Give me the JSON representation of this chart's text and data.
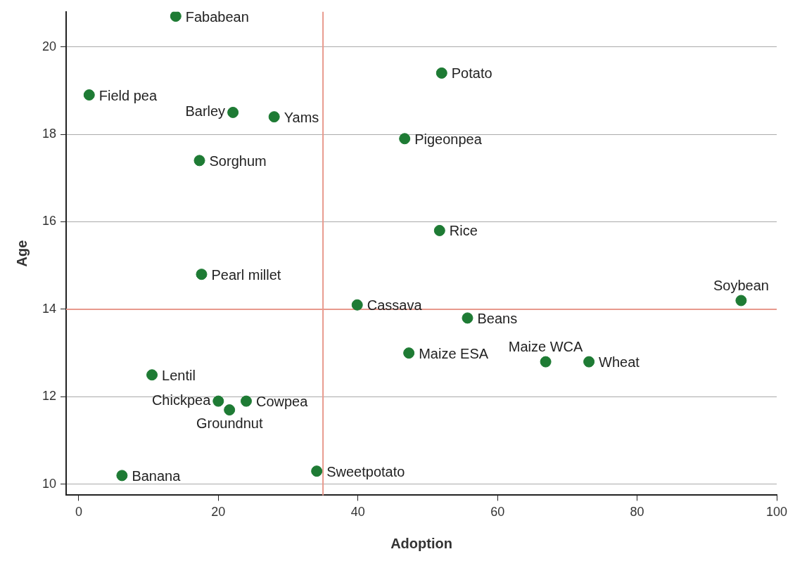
{
  "chart_data": {
    "type": "scatter",
    "xlabel": "Adoption",
    "ylabel": "Age",
    "xlim": [
      -1.8,
      100
    ],
    "xticks": [
      0,
      20,
      40,
      60,
      80,
      100
    ],
    "ylim": [
      9.75,
      20.8
    ],
    "yticks": [
      10,
      12,
      14,
      16,
      18,
      20
    ],
    "grid": "y",
    "legend": false,
    "marker": "circle",
    "x": [
      13.9,
      1.5,
      22.1,
      28.0,
      17.3,
      52.0,
      46.7,
      51.7,
      17.6,
      39.9,
      94.9,
      55.7,
      47.3,
      66.9,
      73.1,
      10.5,
      20.0,
      24.0,
      21.6,
      6.2,
      34.1
    ],
    "series": [
      {
        "color": "#1e7b34",
        "values": [
          20.7,
          18.9,
          18.5,
          18.4,
          17.4,
          19.4,
          17.9,
          15.8,
          14.8,
          14.1,
          14.2,
          13.8,
          13.0,
          12.8,
          12.8,
          12.5,
          11.9,
          11.9,
          11.7,
          10.2,
          10.3
        ]
      }
    ],
    "ref_lines": [
      {
        "axis": "x",
        "value": 35,
        "color": "#e8998d"
      },
      {
        "axis": "y",
        "value": 14,
        "color": "#e8998d"
      }
    ],
    "annotations": [
      {
        "text": "Fababean",
        "x": 13.9,
        "y": 20.7
      },
      {
        "text": "Field pea",
        "x": 1.5,
        "y": 18.9
      },
      {
        "text": "Barley",
        "x": 22.1,
        "y": 18.5
      },
      {
        "text": "Yams",
        "x": 28.0,
        "y": 18.4
      },
      {
        "text": "Sorghum",
        "x": 17.3,
        "y": 17.4
      },
      {
        "text": "Potato",
        "x": 52.0,
        "y": 19.4
      },
      {
        "text": "Pigeonpea",
        "x": 46.7,
        "y": 17.9
      },
      {
        "text": "Rice",
        "x": 51.7,
        "y": 15.8
      },
      {
        "text": "Pearl millet",
        "x": 17.6,
        "y": 14.8
      },
      {
        "text": "Cassava",
        "x": 39.9,
        "y": 14.1
      },
      {
        "text": "Soybean",
        "x": 94.9,
        "y": 14.2
      },
      {
        "text": "Beans",
        "x": 55.7,
        "y": 13.8
      },
      {
        "text": "Maize ESA",
        "x": 47.3,
        "y": 13.0
      },
      {
        "text": "Maize WCA",
        "x": 66.9,
        "y": 12.8
      },
      {
        "text": "Wheat",
        "x": 73.1,
        "y": 12.8
      },
      {
        "text": "Lentil",
        "x": 10.5,
        "y": 12.5
      },
      {
        "text": "Chickpea",
        "x": 20.0,
        "y": 11.9
      },
      {
        "text": "Cowpea",
        "x": 24.0,
        "y": 11.9
      },
      {
        "text": "Groundnut",
        "x": 21.6,
        "y": 11.7
      },
      {
        "text": "Banana",
        "x": 6.2,
        "y": 10.2
      },
      {
        "text": "Sweetpotato",
        "x": 34.1,
        "y": 10.3
      }
    ]
  }
}
